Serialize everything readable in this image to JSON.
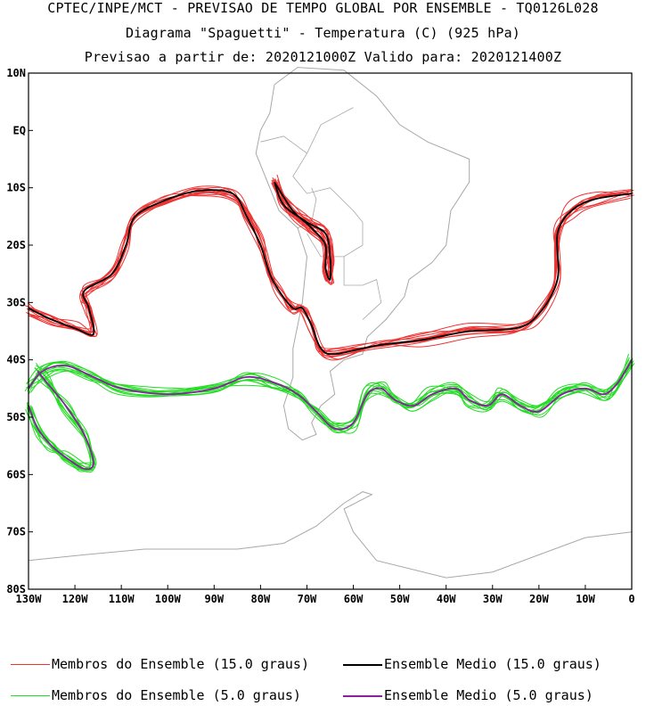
{
  "header": {
    "line1": "CPTEC/INPE/MCT - PREVISAO DE TEMPO GLOBAL POR ENSEMBLE - TQ0126L028",
    "line2": "Diagrama \"Spaguetti\" - Temperatura (C) (925 hPa)",
    "line3": "Previsao a partir de: 2020121000Z  Valido para: 2020121400Z"
  },
  "legend": {
    "members_15": "Membros do Ensemble (15.0 graus)",
    "mean_15": "Ensemble Medio (15.0 graus)",
    "members_5": "Membros do Ensemble (5.0 graus)",
    "mean_5": "Ensemble Medio (5.0 graus)"
  },
  "colors": {
    "members_15": "#ee3333",
    "mean_15": "#000000",
    "members_5": "#22dd22",
    "mean_5": "#8a1fa0",
    "coast": "#a8a8a8"
  },
  "chart_data": {
    "type": "line",
    "title": "Diagrama \"Spaguetti\" - Temperatura (C) (925 hPa)",
    "x_ticks": [
      "130W",
      "120W",
      "110W",
      "100W",
      "90W",
      "80W",
      "70W",
      "60W",
      "50W",
      "40W",
      "30W",
      "20W",
      "10W",
      "0"
    ],
    "y_ticks": [
      "10N",
      "EQ",
      "10S",
      "20S",
      "30S",
      "40S",
      "50S",
      "60S",
      "70S",
      "80S"
    ],
    "xlim": [
      -130,
      0
    ],
    "ylim": [
      -80,
      10
    ],
    "series": [
      {
        "name": "Ensemble Medio (15.0 graus)",
        "segments": [
          [
            [
              -130,
              -31
            ],
            [
              -125,
              -33
            ],
            [
              -120,
              -34.5
            ],
            [
              -116,
              -35.5
            ],
            [
              -117,
              -31
            ],
            [
              -118,
              -28
            ],
            [
              -112,
              -25
            ],
            [
              -109,
              -20
            ],
            [
              -107,
              -15
            ],
            [
              -100,
              -12
            ],
            [
              -93,
              -10.5
            ],
            [
              -86,
              -11
            ],
            [
              -83,
              -15
            ],
            [
              -80,
              -20
            ],
            [
              -78,
              -25
            ],
            [
              -76,
              -28
            ],
            [
              -73,
              -31
            ],
            [
              -71,
              -31
            ],
            [
              -69,
              -34
            ],
            [
              -67,
              -38
            ],
            [
              -64,
              -39
            ],
            [
              -55,
              -37.5
            ],
            [
              -45,
              -36.5
            ],
            [
              -35,
              -35
            ],
            [
              -25,
              -34.5
            ],
            [
              -20,
              -32
            ],
            [
              -16,
              -26
            ],
            [
              -16,
              -18
            ],
            [
              -13,
              -14
            ],
            [
              -8,
              -12
            ],
            [
              0,
              -11
            ]
          ],
          [
            [
              -77,
              -9
            ],
            [
              -75,
              -13
            ],
            [
              -70,
              -16
            ],
            [
              -66,
              -18
            ],
            [
              -65,
              -22
            ],
            [
              -65,
              -26
            ],
            [
              -66,
              -24
            ],
            [
              -66,
              -20
            ],
            [
              -69,
              -17
            ],
            [
              -73,
              -14
            ],
            [
              -77,
              -9
            ]
          ]
        ]
      },
      {
        "name": "Ensemble Medio (5.0 graus)",
        "segments": [
          [
            [
              -130,
              -45
            ],
            [
              -127,
              -42
            ],
            [
              -122,
              -41
            ],
            [
              -116,
              -43
            ],
            [
              -110,
              -45
            ],
            [
              -100,
              -46
            ],
            [
              -90,
              -45
            ],
            [
              -83,
              -43
            ],
            [
              -77,
              -44
            ],
            [
              -72,
              -46
            ],
            [
              -68,
              -49
            ],
            [
              -64,
              -52
            ],
            [
              -60,
              -51
            ],
            [
              -57,
              -46
            ],
            [
              -54,
              -45
            ],
            [
              -51,
              -47
            ],
            [
              -47,
              -48
            ],
            [
              -43,
              -46
            ],
            [
              -38,
              -45
            ],
            [
              -35,
              -47
            ],
            [
              -31,
              -48
            ],
            [
              -28,
              -46
            ],
            [
              -24,
              -48
            ],
            [
              -20,
              -49
            ],
            [
              -15,
              -46
            ],
            [
              -10,
              -45
            ],
            [
              -6,
              -46
            ],
            [
              -3,
              -44
            ],
            [
              0,
              -40
            ]
          ],
          [
            [
              -130,
              -48
            ],
            [
              -128,
              -52
            ],
            [
              -125,
              -55
            ],
            [
              -122,
              -57
            ],
            [
              -118,
              -59
            ],
            [
              -116,
              -58
            ],
            [
              -118,
              -53
            ],
            [
              -122,
              -48
            ],
            [
              -126,
              -44
            ],
            [
              -128,
              -42
            ]
          ]
        ]
      }
    ],
    "members_15_count": 11,
    "members_5_count": 11,
    "legend_position": "bottom",
    "grid": false
  }
}
